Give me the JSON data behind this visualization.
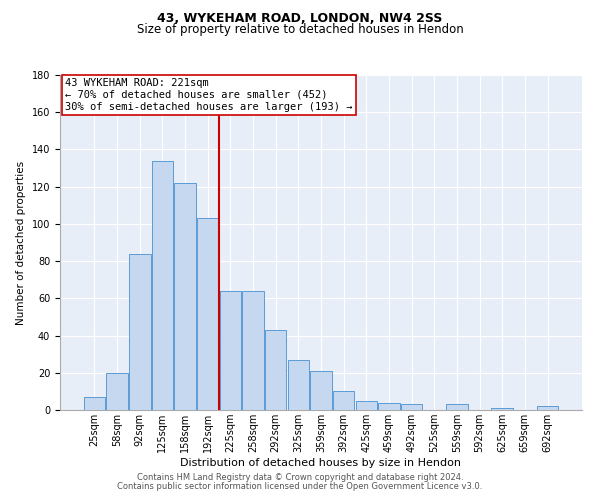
{
  "title1": "43, WYKEHAM ROAD, LONDON, NW4 2SS",
  "title2": "Size of property relative to detached houses in Hendon",
  "xlabel": "Distribution of detached houses by size in Hendon",
  "ylabel": "Number of detached properties",
  "categories": [
    "25sqm",
    "58sqm",
    "92sqm",
    "125sqm",
    "158sqm",
    "192sqm",
    "225sqm",
    "258sqm",
    "292sqm",
    "325sqm",
    "359sqm",
    "392sqm",
    "425sqm",
    "459sqm",
    "492sqm",
    "525sqm",
    "559sqm",
    "592sqm",
    "625sqm",
    "659sqm",
    "692sqm"
  ],
  "values": [
    7,
    20,
    84,
    134,
    122,
    103,
    64,
    64,
    43,
    27,
    21,
    10,
    5,
    4,
    3,
    0,
    3,
    0,
    1,
    0,
    2
  ],
  "bar_color": "#c5d8f0",
  "bar_edge_color": "#5b9bd5",
  "vline_x": 6,
  "vline_color": "#cc0000",
  "annotation_text": "43 WYKEHAM ROAD: 221sqm\n← 70% of detached houses are smaller (452)\n30% of semi-detached houses are larger (193) →",
  "annotation_box_color": "white",
  "annotation_box_edge_color": "#cc0000",
  "ylim": [
    0,
    180
  ],
  "yticks": [
    0,
    20,
    40,
    60,
    80,
    100,
    120,
    140,
    160,
    180
  ],
  "background_color": "#e8eef7",
  "footer1": "Contains HM Land Registry data © Crown copyright and database right 2024.",
  "footer2": "Contains public sector information licensed under the Open Government Licence v3.0.",
  "title1_fontsize": 9,
  "title2_fontsize": 8.5,
  "xlabel_fontsize": 8,
  "ylabel_fontsize": 7.5,
  "tick_fontsize": 7,
  "annotation_fontsize": 7.5,
  "footer_fontsize": 6
}
